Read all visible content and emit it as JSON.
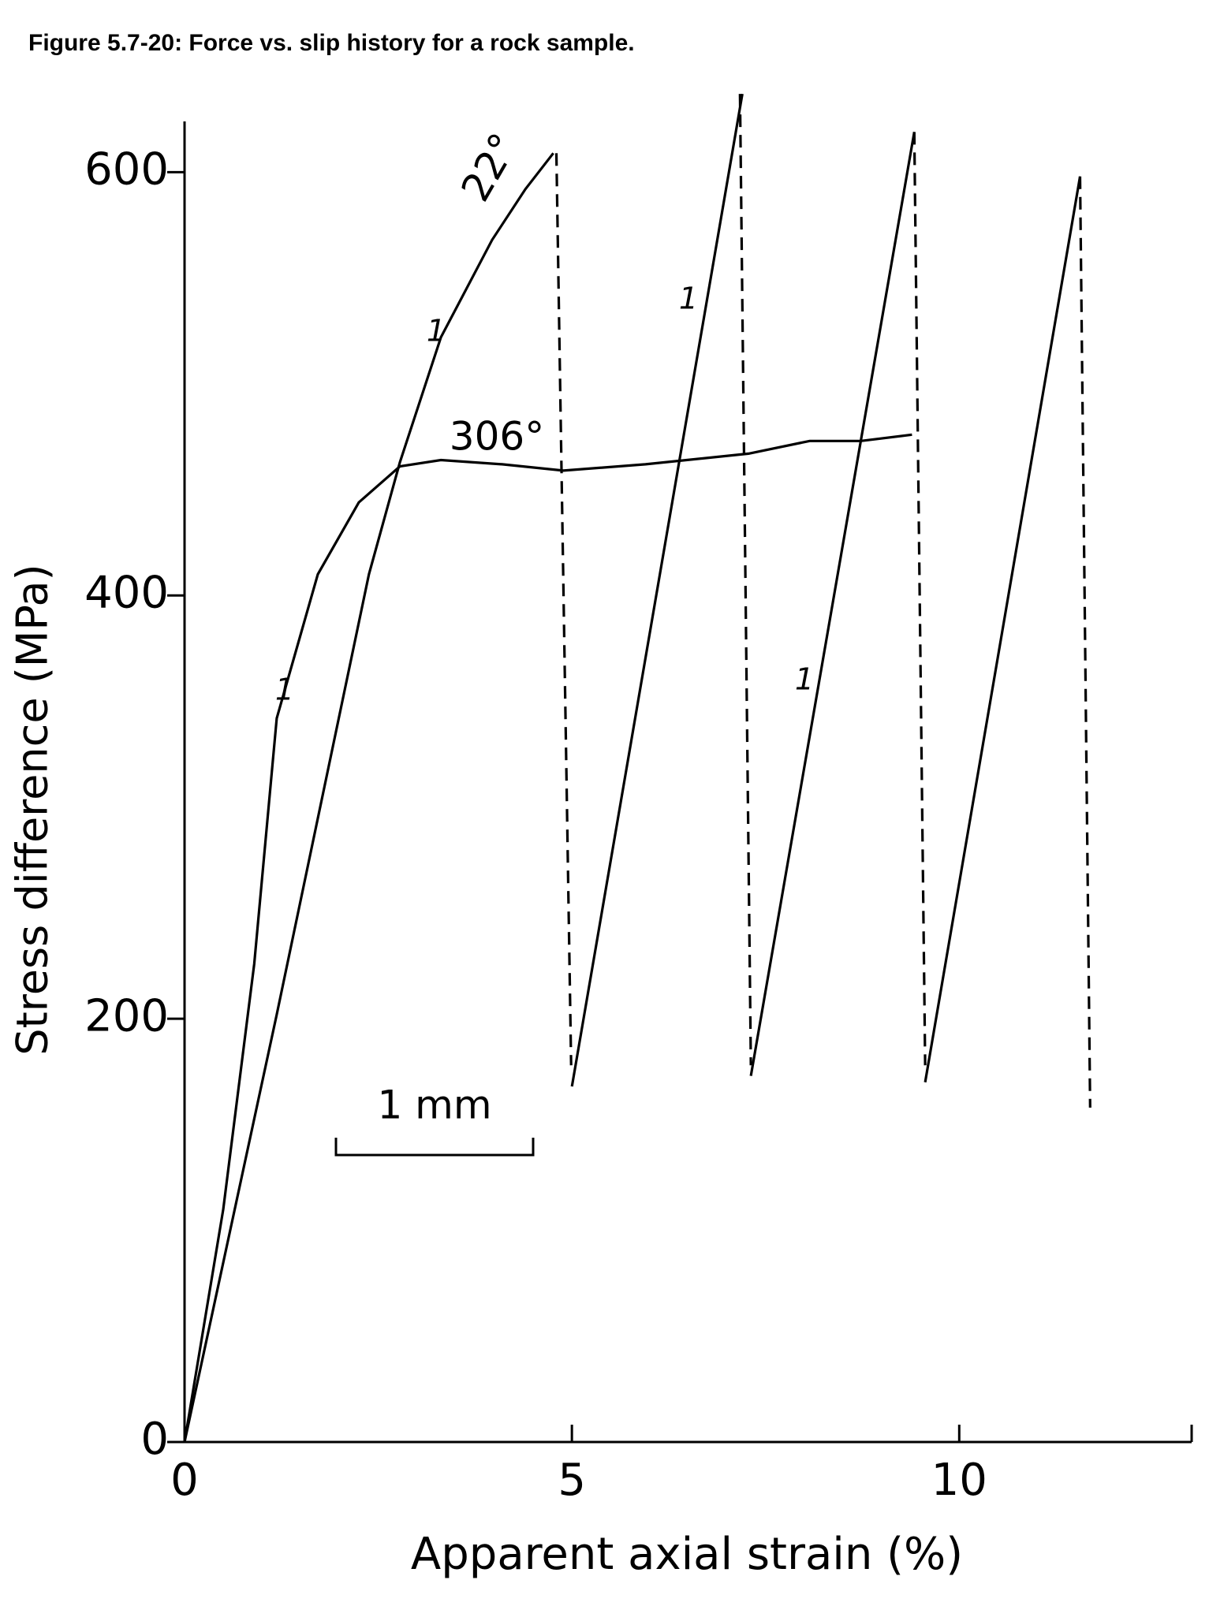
{
  "chart_data": {
    "type": "line",
    "title": "Figure 5.7-20: Force vs. slip history for a rock sample.",
    "x_label": "Apparent axial strain (%)",
    "y_label": "Stress difference (MPa)",
    "xlim": [
      0,
      13
    ],
    "ylim": [
      0,
      624
    ],
    "xticks": [
      0,
      5,
      10
    ],
    "yticks": [
      0,
      200,
      400,
      600
    ],
    "series": [
      {
        "name": "22°",
        "color": "#000000",
        "dash": false,
        "x": [
          0,
          1.19,
          2.38,
          2.78,
          3.31,
          3.97,
          4.4,
          4.76
        ],
        "values": [
          0,
          202,
          410,
          463,
          522,
          568,
          592,
          609
        ]
      },
      {
        "name": "306°",
        "color": "#000000",
        "dash": false,
        "x": [
          0,
          0.5,
          0.9,
          1.19,
          1.72,
          2.25,
          2.78,
          3.31,
          4.1,
          4.89,
          5.95,
          7.28,
          8.07,
          8.73,
          9.39
        ],
        "values": [
          0,
          110,
          226,
          342,
          410,
          444,
          461,
          464,
          462,
          459,
          462,
          467,
          473,
          473,
          476
        ]
      },
      {
        "color": "#000000",
        "dash": false,
        "x": [
          5.0,
          7.2,
          null,
          7.31,
          9.42,
          null,
          9.56,
          11.56
        ],
        "values": [
          168,
          637,
          null,
          173,
          619,
          null,
          170,
          598
        ]
      },
      {
        "color": "#000000",
        "dash": true,
        "x": [
          4.8,
          4.99,
          null,
          7.17,
          7.31,
          null,
          9.42,
          9.56,
          null,
          11.56,
          11.69
        ],
        "values": [
          609,
          178,
          null,
          637,
          178,
          null,
          619,
          178,
          null,
          598,
          158
        ]
      }
    ],
    "annotations": [
      "1",
      "1",
      "1",
      "1",
      "1 mm"
    ]
  }
}
